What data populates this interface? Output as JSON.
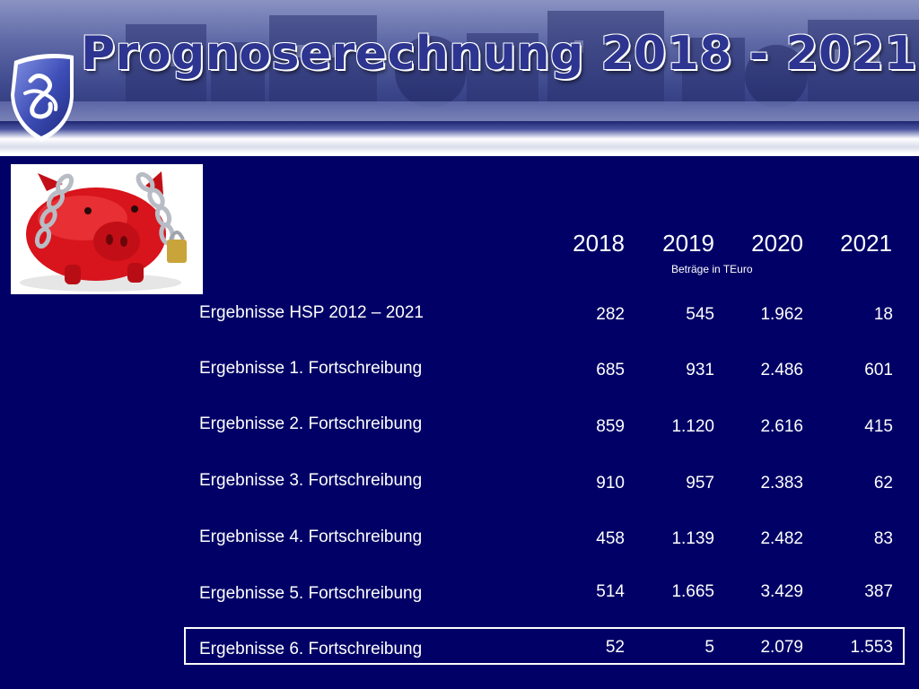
{
  "slide": {
    "title": "Prognoserechnung 2018 - 2021"
  },
  "table": {
    "years": [
      "2018",
      "2019",
      "2020",
      "2021"
    ],
    "unit_note": "Beträge in TEuro",
    "rows": [
      {
        "label": "Ergebnisse HSP 2012 – 2021",
        "values": [
          "282",
          "545",
          "1.962",
          "18"
        ]
      },
      {
        "label": "Ergebnisse 1. Fortschreibung",
        "values": [
          "685",
          "931",
          "2.486",
          "601"
        ]
      },
      {
        "label": "Ergebnisse 2. Fortschreibung",
        "values": [
          "859",
          "1.120",
          "2.616",
          "415"
        ]
      },
      {
        "label": "Ergebnisse 3. Fortschreibung",
        "values": [
          "910",
          "957",
          "2.383",
          "62"
        ]
      },
      {
        "label": "Ergebnisse 4. Fortschreibung",
        "values": [
          "458",
          "1.139",
          "2.482",
          "83"
        ]
      },
      {
        "label": "Ergebnisse 5. Fortschreibung",
        "values": [
          "514",
          "1.665",
          "3.429",
          "387"
        ]
      },
      {
        "label": "Ergebnisse 6. Fortschreibung",
        "values": [
          "52",
          "5",
          "2.079",
          "1.553"
        ]
      }
    ]
  },
  "colors": {
    "background": "#000066",
    "title": "#2d3590",
    "text": "#ffffff"
  },
  "icons": {
    "logo": "city-crest-shield-icon",
    "image": "piggy-bank-chained-padlock-image"
  }
}
